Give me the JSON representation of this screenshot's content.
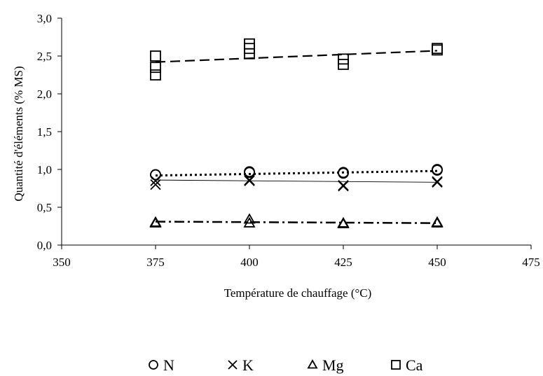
{
  "chart_data": {
    "type": "scatter",
    "xlabel": "Température de chauffage (°C)",
    "ylabel": "Quantité d'éléments (% MS)",
    "xlim": [
      350,
      475
    ],
    "ylim": [
      0,
      3.0
    ],
    "x_ticks": [
      "350",
      "375",
      "400",
      "425",
      "450",
      "475"
    ],
    "y_ticks": [
      "0,0",
      "0,5",
      "1,0",
      "1,5",
      "2,0",
      "2,5",
      "3,0"
    ],
    "grid": false,
    "legend_position": "bottom",
    "series": [
      {
        "name": "N",
        "marker": "circle",
        "x": [
          375,
          375,
          400,
          400,
          425,
          425,
          450,
          450
        ],
        "y": [
          0.93,
          0.93,
          0.97,
          0.96,
          0.95,
          0.96,
          1.0,
          0.99
        ],
        "trend": {
          "y_start": 0.92,
          "y_end": 0.98,
          "style": "dotted"
        }
      },
      {
        "name": "K",
        "marker": "x",
        "x": [
          375,
          375,
          400,
          400,
          425,
          425,
          450,
          450
        ],
        "y": [
          0.85,
          0.8,
          0.86,
          0.85,
          0.79,
          0.78,
          0.84,
          0.83
        ],
        "trend": {
          "y_start": 0.86,
          "y_end": 0.83,
          "style": "solid"
        }
      },
      {
        "name": "Mg",
        "marker": "triangle",
        "x": [
          375,
          375,
          400,
          400,
          425,
          425,
          450,
          450
        ],
        "y": [
          0.3,
          0.29,
          0.34,
          0.29,
          0.29,
          0.28,
          0.3,
          0.29
        ],
        "trend": {
          "y_start": 0.31,
          "y_end": 0.29,
          "style": "dash-dot"
        }
      },
      {
        "name": "Ca",
        "marker": "square",
        "x": [
          375,
          375,
          375,
          400,
          400,
          400,
          425,
          425,
          450,
          450
        ],
        "y": [
          2.5,
          2.35,
          2.25,
          2.66,
          2.6,
          2.53,
          2.46,
          2.39,
          2.6,
          2.58
        ],
        "trend": {
          "y_start": 2.42,
          "y_end": 2.57,
          "style": "dashed"
        }
      }
    ]
  }
}
